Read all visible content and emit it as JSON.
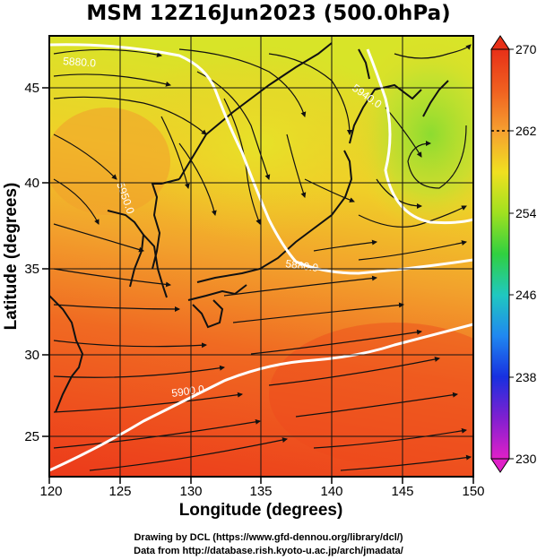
{
  "title": "MSM 12Z16Jun2023 (500.0hPa)",
  "axes": {
    "xlabel": "Longitude (degrees)",
    "ylabel": "Latitude  (degrees)",
    "x_ticks": [
      "120",
      "125",
      "130",
      "135",
      "140",
      "145",
      "150"
    ],
    "y_ticks": [
      "25",
      "30",
      "35",
      "40",
      "45"
    ]
  },
  "colorbar": {
    "ticks": [
      "270",
      "262",
      "254",
      "246",
      "238",
      "230"
    ],
    "colors": [
      "#e83018",
      "#f06020",
      "#f6a030",
      "#f0e020",
      "#a0e020",
      "#30d040",
      "#20c8c0",
      "#2088f0",
      "#1830e0",
      "#8020d0",
      "#e020c8"
    ]
  },
  "contours": {
    "labels": [
      "5880.0",
      "5880.0",
      "5940.0",
      "5900.0",
      "5950.0"
    ]
  },
  "credits": {
    "line1": "Drawing by DCL (https://www.gfd-dennou.org/library/dcl/)",
    "line2": "Data from http://database.rish.kyoto-u.ac.jp/arch/jmadata/"
  }
}
